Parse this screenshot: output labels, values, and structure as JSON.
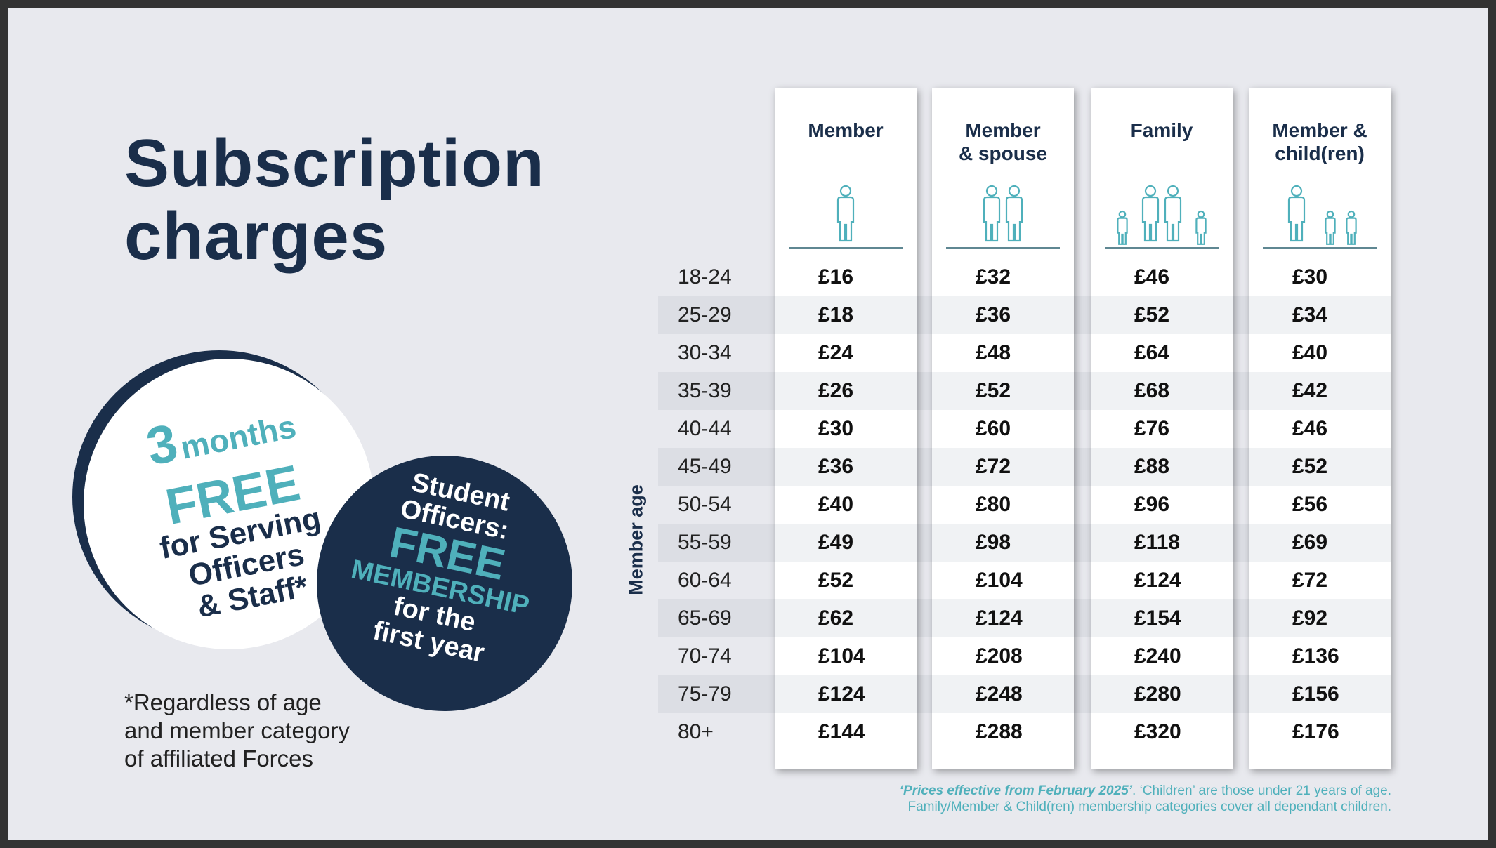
{
  "title": [
    "Subscription",
    "charges"
  ],
  "columns": [
    {
      "label": [
        "Member",
        ""
      ],
      "icon": "single-person-icon"
    },
    {
      "label": [
        "Member",
        "& spouse"
      ],
      "icon": "couple-icon"
    },
    {
      "label": [
        "Family",
        ""
      ],
      "icon": "family-icon"
    },
    {
      "label": [
        "Member &",
        "child(ren)"
      ],
      "icon": "parent-children-icon"
    }
  ],
  "row_axis_label": "Member age",
  "rows": [
    {
      "age": "18-24",
      "prices": [
        "£16",
        "£32",
        "£46",
        "£30"
      ]
    },
    {
      "age": "25-29",
      "prices": [
        "£18",
        "£36",
        "£52",
        "£34"
      ]
    },
    {
      "age": "30-34",
      "prices": [
        "£24",
        "£48",
        "£64",
        "£40"
      ]
    },
    {
      "age": "35-39",
      "prices": [
        "£26",
        "£52",
        "£68",
        "£42"
      ]
    },
    {
      "age": "40-44",
      "prices": [
        "£30",
        "£60",
        "£76",
        "£46"
      ]
    },
    {
      "age": "45-49",
      "prices": [
        "£36",
        "£72",
        "£88",
        "£52"
      ]
    },
    {
      "age": "50-54",
      "prices": [
        "£40",
        "£80",
        "£96",
        "£56"
      ]
    },
    {
      "age": "55-59",
      "prices": [
        "£49",
        "£98",
        "£118",
        "£69"
      ]
    },
    {
      "age": "60-64",
      "prices": [
        "£52",
        "£104",
        "£124",
        "£72"
      ]
    },
    {
      "age": "65-69",
      "prices": [
        "£62",
        "£124",
        "£154",
        "£92"
      ]
    },
    {
      "age": "70-74",
      "prices": [
        "£104",
        "£208",
        "£240",
        "£136"
      ]
    },
    {
      "age": "75-79",
      "prices": [
        "£124",
        "£248",
        "£280",
        "£156"
      ]
    },
    {
      "age": "80+",
      "prices": [
        "£144",
        "£288",
        "£320",
        "£176"
      ]
    }
  ],
  "badge_serving": {
    "big": "3",
    "months": "months",
    "free": "FREE",
    "lines": [
      "for Serving",
      "Officers",
      "& Staff*"
    ]
  },
  "badge_student": {
    "lines_top": [
      "Student",
      "Officers:"
    ],
    "free": "FREE",
    "membership": "MEMBERSHIP",
    "lines_bottom": [
      "for the",
      "first year"
    ]
  },
  "note": [
    "*Regardless of age",
    "and member category",
    "of affiliated Forces"
  ],
  "footnote": {
    "emphasis": "‘Prices effective from February 2025’",
    "line1_rest": ". ‘Children’ are those under 21 years of age.",
    "line2": "Family/Member & Child(ren) membership categories cover all dependant children."
  },
  "colors": {
    "navy": "#1a2e4a",
    "teal": "#4fb0bb",
    "background": "#e8e9ee"
  }
}
